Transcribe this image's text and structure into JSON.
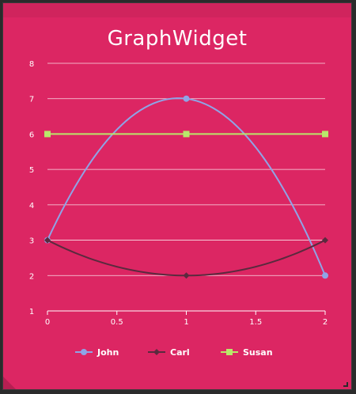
{
  "widget": {
    "title": "GraphWidget"
  },
  "chart_data": {
    "type": "line",
    "title": "GraphWidget",
    "xlabel": "",
    "ylabel": "",
    "xlim": [
      0,
      2
    ],
    "ylim": [
      1,
      8
    ],
    "x_ticks": [
      "0",
      "0.5",
      "1",
      "1.5",
      "2"
    ],
    "y_ticks": [
      "1",
      "2",
      "3",
      "4",
      "5",
      "6",
      "7",
      "8"
    ],
    "grid": true,
    "legend_position": "bottom",
    "x": [
      0,
      1,
      2
    ],
    "series": [
      {
        "name": "John",
        "values": [
          3,
          7,
          2
        ],
        "color": "#8fa4e6",
        "marker": "circle"
      },
      {
        "name": "Carl",
        "values": [
          3,
          2,
          3
        ],
        "color": "#5a2a3e",
        "marker": "diamond"
      },
      {
        "name": "Susan",
        "values": [
          6,
          6,
          6
        ],
        "color": "#b9e86a",
        "marker": "square"
      }
    ]
  },
  "colors": {
    "background": "#dc2663",
    "grid": "#ffffff",
    "text": "#ffffff"
  }
}
